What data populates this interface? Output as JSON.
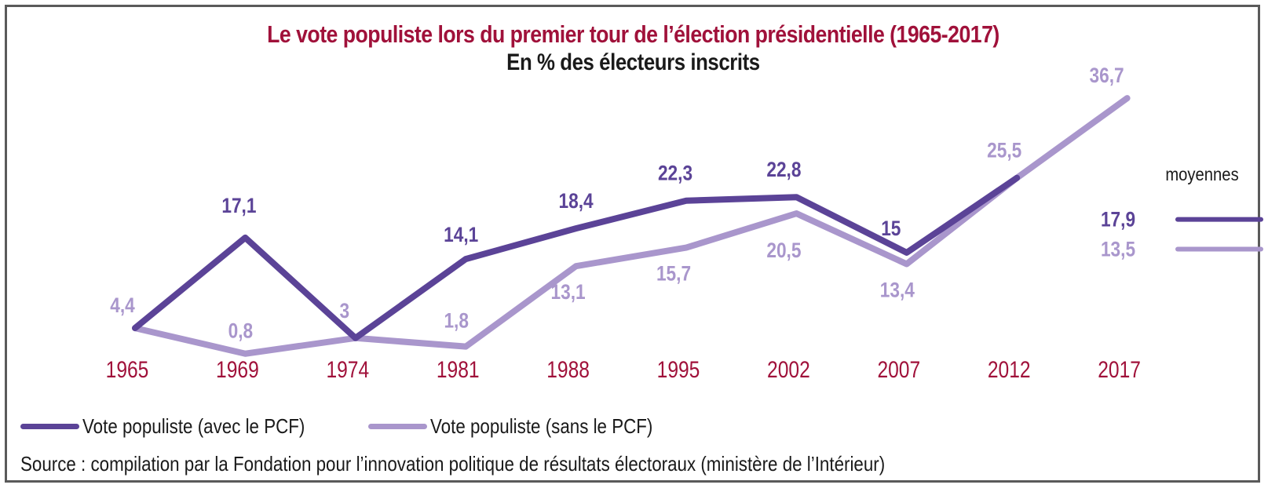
{
  "chart_data": {
    "type": "line",
    "title": "Le vote populiste lors du premier tour de l’élection présidentielle (1965-2017)",
    "subtitle": "En % des électeurs inscrits",
    "xlabel": "",
    "ylabel": "",
    "categories": [
      "1965",
      "1969",
      "1974",
      "1981",
      "1988",
      "1995",
      "2002",
      "2007",
      "2012",
      "2017"
    ],
    "series": [
      {
        "name": "Vote populiste (avec le PCF)",
        "color": "#5b4397",
        "values": [
          4.4,
          17.1,
          3,
          14.1,
          18.4,
          22.3,
          22.8,
          15,
          25.5,
          null
        ],
        "labels": [
          "",
          "17,1",
          "",
          "14,1",
          "18,4",
          "22,3",
          "22,8",
          "15",
          "",
          ""
        ]
      },
      {
        "name": "Vote populiste (sans le PCF)",
        "color": "#a996cc",
        "values": [
          4.4,
          0.8,
          3,
          1.8,
          13.1,
          15.7,
          20.5,
          13.4,
          25.5,
          36.7
        ],
        "labels": [
          "4,4",
          "0,8",
          "3",
          "1,8",
          "13,1",
          "15,7",
          "20,5",
          "13,4",
          "25,5",
          "36,7"
        ]
      }
    ],
    "averages": {
      "label": "moyennes",
      "items": [
        {
          "series": "Vote populiste (avec le PCF)",
          "value": 17.9,
          "label": "17,9",
          "color": "#5b4397"
        },
        {
          "series": "Vote populiste (sans le PCF)",
          "value": 13.5,
          "label": "13,5",
          "color": "#a996cc"
        }
      ]
    },
    "ylim": [
      0,
      40
    ],
    "grid": false,
    "legend_position": "bottom-left",
    "tick_color": "#a0113a",
    "title_color": "#a0113a"
  },
  "source": "Source : compilation par la Fondation pour l’innovation politique de résultats électoraux (ministère de l’Intérieur)"
}
